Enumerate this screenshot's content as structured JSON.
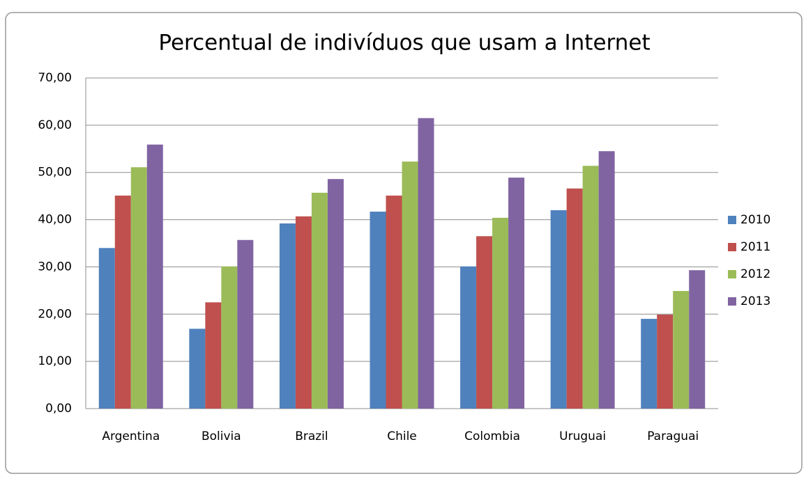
{
  "chart_data": {
    "type": "bar",
    "title": "Percentual de indivíduos que usam a Internet",
    "categories": [
      "Argentina",
      "Bolivia",
      "Brazil",
      "Chile",
      "Colombia",
      "Uruguai",
      "Paraguai"
    ],
    "series": [
      {
        "name": "2010",
        "color": "#4f81bd",
        "values": [
          34.0,
          16.9,
          39.2,
          41.7,
          30.1,
          42.0,
          19.0
        ]
      },
      {
        "name": "2011",
        "color": "#c0504d",
        "values": [
          45.1,
          22.5,
          40.7,
          45.1,
          36.5,
          46.6,
          19.9
        ]
      },
      {
        "name": "2012",
        "color": "#9bbb59",
        "values": [
          51.1,
          30.1,
          45.7,
          52.3,
          40.4,
          51.4,
          24.9
        ]
      },
      {
        "name": "2013",
        "color": "#8064a2",
        "values": [
          55.9,
          35.7,
          48.6,
          61.5,
          48.9,
          54.5,
          29.3
        ]
      }
    ],
    "ylim": [
      0,
      70
    ],
    "yticks": [
      {
        "value": 0,
        "label": "0,00"
      },
      {
        "value": 10,
        "label": "10,00"
      },
      {
        "value": 20,
        "label": "20,00"
      },
      {
        "value": 30,
        "label": "30,00"
      },
      {
        "value": 40,
        "label": "40,00"
      },
      {
        "value": 50,
        "label": "50,00"
      },
      {
        "value": 60,
        "label": "60,00"
      },
      {
        "value": 70,
        "label": "70,00"
      }
    ],
    "grid": true,
    "legend": "right"
  }
}
